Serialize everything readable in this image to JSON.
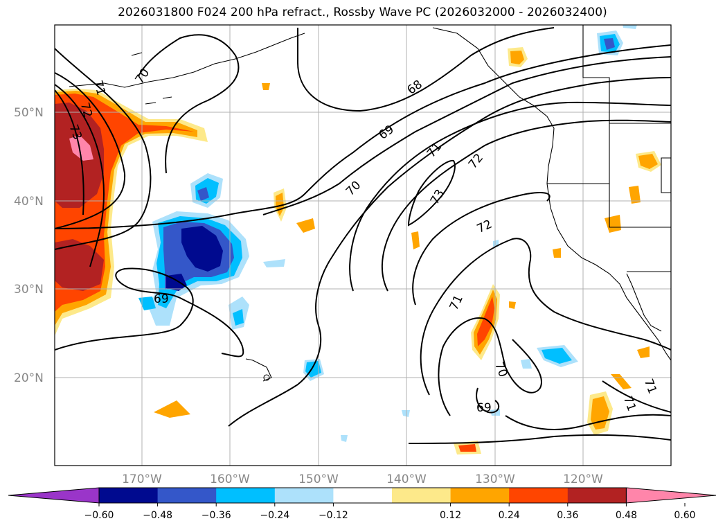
{
  "title": "2026031800 F024 200 hPa refract., Rossby Wave PC (2026032000 - 2026032400)",
  "lat_labels": [
    "50°N",
    "40°N",
    "30°N",
    "20°N"
  ],
  "lon_labels": [
    "170°W",
    "160°W",
    "150°W",
    "140°W",
    "130°W",
    "120°W"
  ],
  "colorbar": {
    "tick_labels": [
      "−0.60",
      "−0.48",
      "−0.36",
      "−0.24",
      "−0.12",
      "0.12",
      "0.24",
      "0.36",
      "0.48",
      "0.60"
    ],
    "colors": [
      "#9a35c9",
      "#000a8f",
      "#3457c9",
      "#00bfff",
      "#ade1fb",
      "#ffffff",
      "#fde98a",
      "#ffa500",
      "#ff4500",
      "#b22222",
      "#ff85aa"
    ]
  },
  "contour_labels": [
    "73",
    "72",
    "71",
    "70",
    "70",
    "69",
    "68",
    "69",
    "70",
    "71",
    "72",
    "73",
    "72",
    "71",
    "70",
    "69",
    "71",
    "71",
    "69"
  ],
  "colors": {
    "grid": "#b0b0b0",
    "axis_label": "#888888"
  }
}
